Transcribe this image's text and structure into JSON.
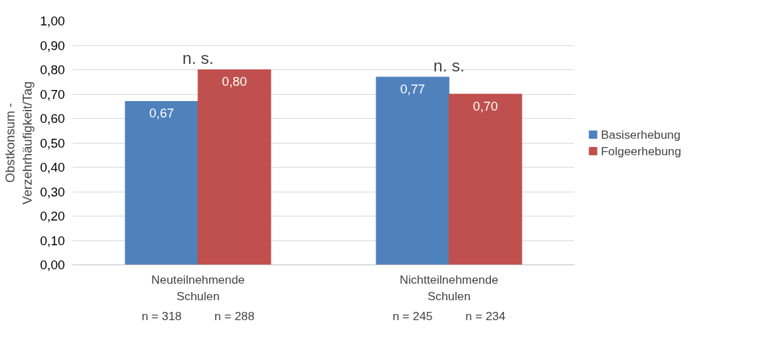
{
  "chart_data": {
    "type": "bar",
    "ylabel": "Obstkonsum -\nVerzehrhäufigkeit/Tag",
    "categories": [
      "Neuteilnehmende\nSchulen",
      "Nichtteilnehmende\nSchulen"
    ],
    "series": [
      {
        "name": "Basiserhebung",
        "color": "#4f81bd",
        "values": [
          0.67,
          0.77
        ],
        "value_labels": [
          "0,67",
          "0,77"
        ]
      },
      {
        "name": "Folgeerhebung",
        "color": "#c0504d",
        "values": [
          0.8,
          0.7
        ],
        "value_labels": [
          "0,80",
          "0,70"
        ]
      }
    ],
    "ylim": [
      0,
      1
    ],
    "yticks": [
      {
        "value": 0,
        "label": "0,00"
      },
      {
        "value": 0.1,
        "label": "0,10"
      },
      {
        "value": 0.2,
        "label": "0,20"
      },
      {
        "value": 0.3,
        "label": "0,30"
      },
      {
        "value": 0.4,
        "label": "0,40"
      },
      {
        "value": 0.5,
        "label": "0,50"
      },
      {
        "value": 0.6,
        "label": "0,60"
      },
      {
        "value": 0.7,
        "label": "0,70"
      },
      {
        "value": 0.8,
        "label": "0,80"
      },
      {
        "value": 0.9,
        "label": "0,90"
      },
      {
        "value": 1,
        "label": "1,00"
      }
    ],
    "annotations": [
      "n. s.",
      "n. s.",
      "n = 318",
      "n = 288",
      "n = 245",
      "n = 234"
    ],
    "grid": "y",
    "legend": "right"
  }
}
